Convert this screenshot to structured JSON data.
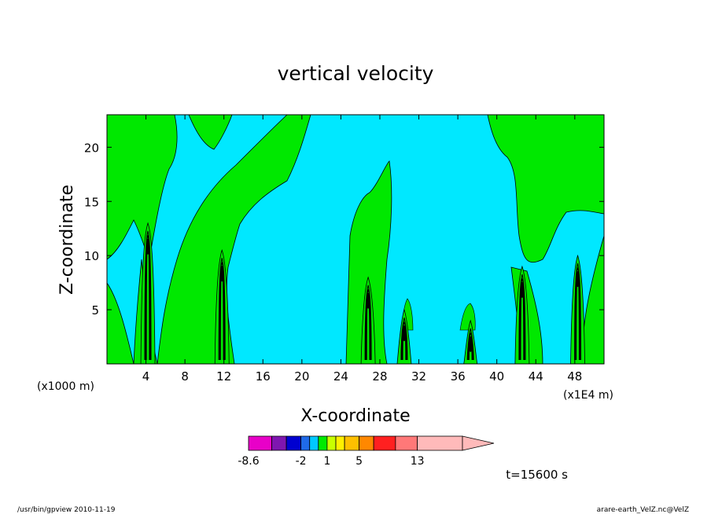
{
  "chart_data": {
    "type": "contour",
    "title": "vertical velocity",
    "xlabel": "X-coordinate",
    "ylabel": "Z-coordinate",
    "x_ticks": [
      "4",
      "8",
      "12",
      "16",
      "20",
      "24",
      "28",
      "32",
      "36",
      "40",
      "44",
      "48"
    ],
    "x_tick_values": [
      4,
      8,
      12,
      16,
      20,
      24,
      28,
      32,
      36,
      40,
      44,
      48
    ],
    "y_ticks": [
      "5",
      "10",
      "15",
      "20"
    ],
    "y_tick_values": [
      5,
      10,
      15,
      20
    ],
    "xlim": [
      0,
      51
    ],
    "ylim": [
      0,
      23
    ],
    "x_scale_note": "(x1000 m)",
    "x_scale_note_right": "(x1E4 m)",
    "colorbar": {
      "labels": [
        "-8.6",
        "-2",
        "1",
        "5",
        "13"
      ],
      "colors": [
        "#e800c8",
        "#7f16b0",
        "#0000d0",
        "#1f6ae8",
        "#00c8ff",
        "#00ea00",
        "#c8ff00",
        "#fff000",
        "#ffc000",
        "#ff8800",
        "#ff2020",
        "#ff7878",
        "#ffbaba"
      ],
      "boundaries": [
        -8.6,
        -6,
        -4,
        -2,
        -1,
        0,
        1,
        2,
        3,
        5,
        7,
        10,
        13
      ],
      "has_triangle_end": true
    },
    "time_label": "t=15600 s",
    "background_color": "#00e8ff",
    "positive_color": "#00e800",
    "updraft_columns": [
      {
        "x": 4.2,
        "top": 13
      },
      {
        "x": 11.8,
        "top": 10.5
      },
      {
        "x": 26.8,
        "top": 8
      },
      {
        "x": 30.5,
        "top": 5
      },
      {
        "x": 37.3,
        "top": 4
      },
      {
        "x": 42.6,
        "top": 9
      },
      {
        "x": 48.3,
        "top": 10
      }
    ]
  },
  "footer": {
    "left": "/usr/bin/gpview   2010-11-19",
    "right": "arare-earth_VelZ.nc@VelZ"
  }
}
